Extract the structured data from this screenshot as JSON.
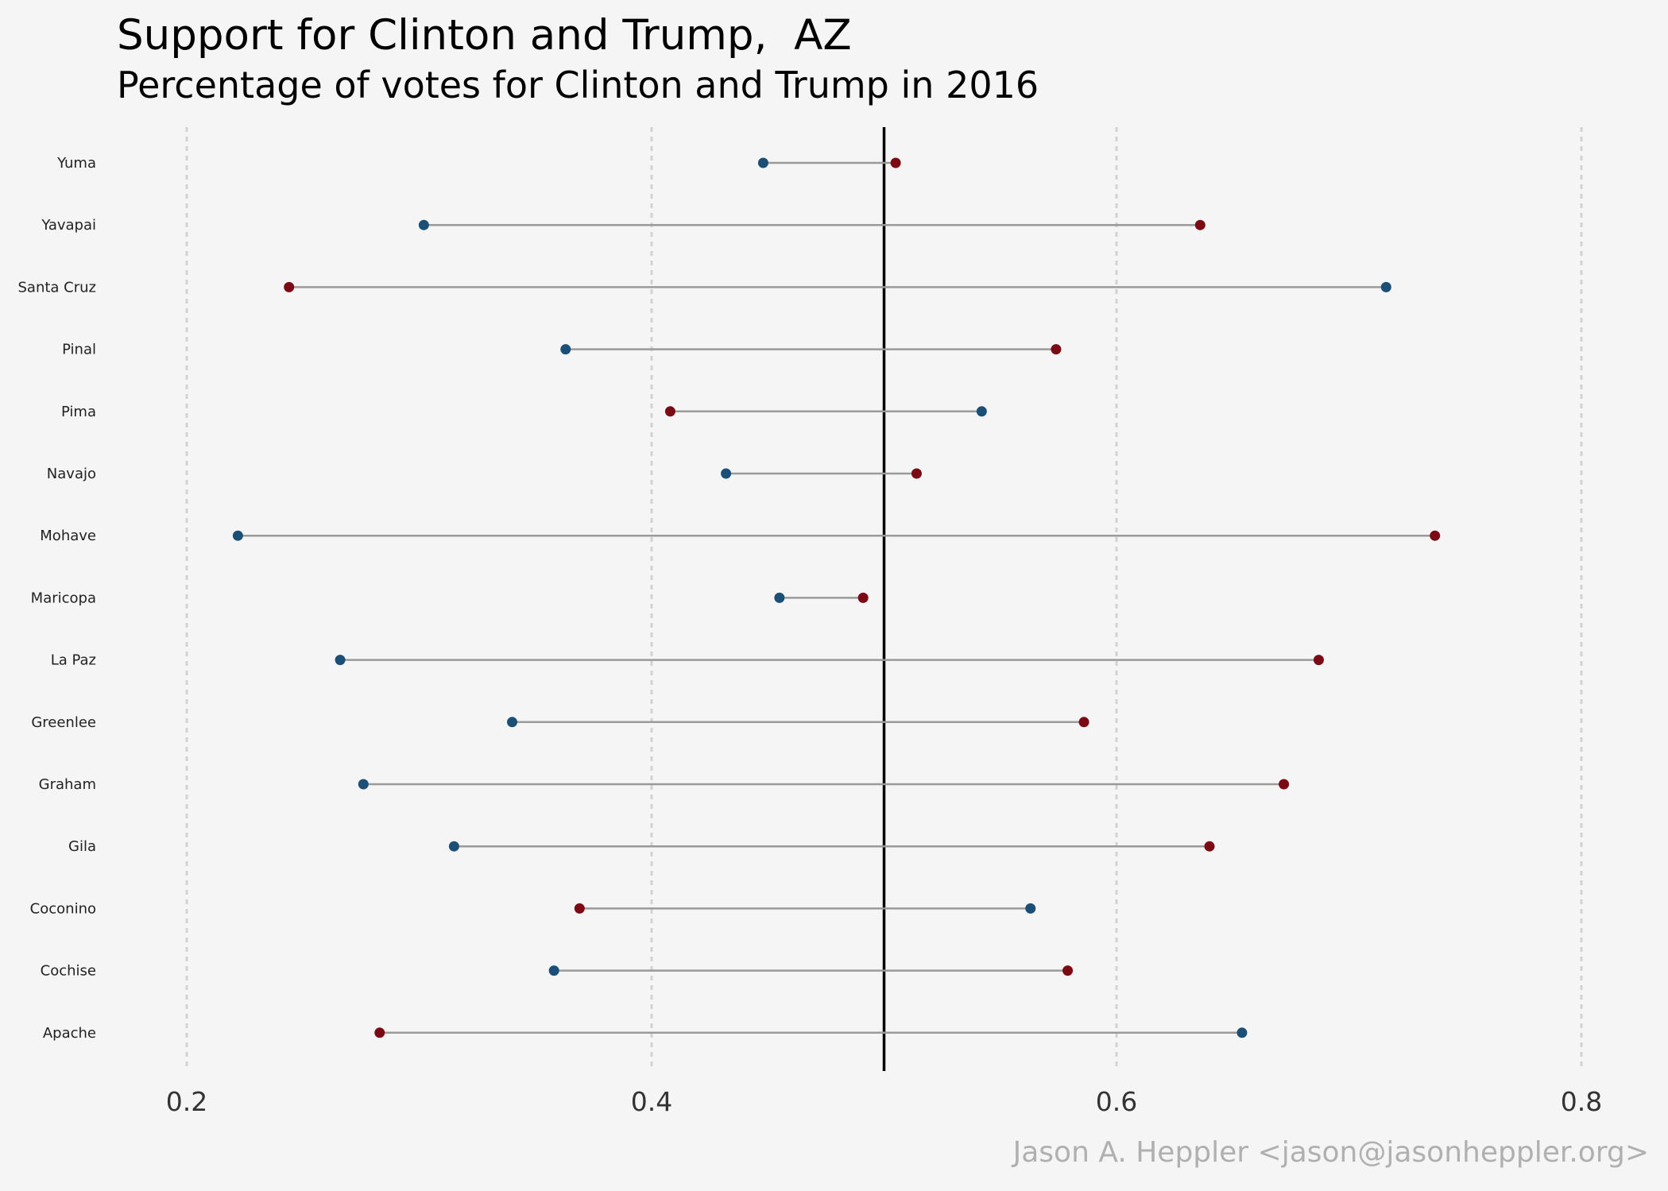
{
  "header": {
    "title": "Support for Clinton and Trump,  AZ",
    "subtitle": "Percentage of votes for Clinton and Trump in 2016"
  },
  "caption": "Jason A. Heppler <jason@jasonheppler.org>",
  "colors": {
    "clinton": "#1b4f76",
    "trump": "#7b0a14",
    "segment": "#9a9a9a",
    "reference_line": "#000000",
    "grid": "#d2d2d2",
    "background": "#f5f5f5"
  },
  "chart_data": {
    "type": "dumbbell",
    "title": "Support for Clinton and Trump,  AZ",
    "subtitle": "Percentage of votes for Clinton and Trump in 2016",
    "xlabel": "",
    "ylabel": "",
    "xlim": [
      0.2,
      0.8
    ],
    "xticks": [
      "0.2",
      "0.4",
      "0.6",
      "0.8"
    ],
    "reference_line": 0.5,
    "grid": "vertical dashed at major x ticks",
    "legend": "none",
    "categories": [
      "Yuma",
      "Yavapai",
      "Santa Cruz",
      "Pinal",
      "Pima",
      "Navajo",
      "Mohave",
      "Maricopa",
      "La Paz",
      "Greenlee",
      "Graham",
      "Gila",
      "Coconino",
      "Cochise",
      "Apache"
    ],
    "series": [
      {
        "color": "#1b4f76",
        "values": [
          0.448,
          0.302,
          0.716,
          0.363,
          0.542,
          0.432,
          0.222,
          0.455,
          0.266,
          0.34,
          0.276,
          0.315,
          0.563,
          0.358,
          0.654
        ]
      },
      {
        "color": "#7b0a14",
        "values": [
          0.505,
          0.636,
          0.244,
          0.574,
          0.408,
          0.514,
          0.737,
          0.491,
          0.687,
          0.586,
          0.672,
          0.64,
          0.369,
          0.579,
          0.283
        ]
      }
    ]
  }
}
